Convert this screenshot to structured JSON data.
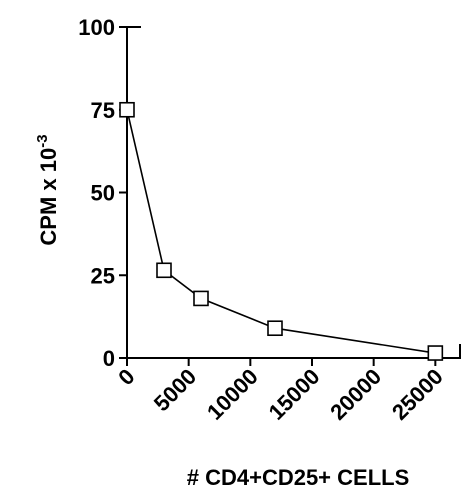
{
  "chart_data": {
    "type": "line",
    "title": "",
    "xlabel": "# CD4+CD25+ CELLS",
    "ylabel_main": "CPM x 10",
    "ylabel_exp": "-3",
    "xlim": [
      0,
      27000
    ],
    "ylim": [
      0,
      100
    ],
    "x_ticks": [
      0,
      5000,
      10000,
      15000,
      20000,
      25000
    ],
    "y_ticks": [
      0,
      25,
      50,
      75,
      100
    ],
    "grid": false,
    "marker": "open-square",
    "series": [
      {
        "x": [
          0,
          3000,
          6000,
          12000,
          25000
        ],
        "y": [
          75,
          26.5,
          18,
          9,
          1.5
        ]
      }
    ]
  }
}
